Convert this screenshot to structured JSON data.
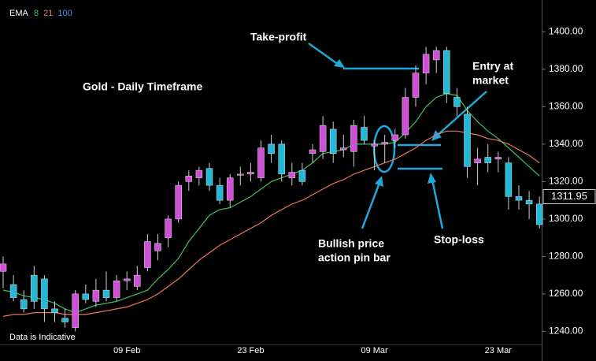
{
  "chart_data": {
    "type": "candlestick",
    "title": "Gold - Daily Timeframe",
    "footnote": "Data is Indicative",
    "legend_title": "EMA",
    "legend_extra": {
      "name": "100",
      "color": "#4f8ff0"
    },
    "up_color": "#d04fd8",
    "down_color": "#22b8d8",
    "categories": [
      null,
      null,
      null,
      null,
      null,
      null,
      null,
      null,
      null,
      null,
      null,
      null,
      "09 Feb",
      null,
      null,
      null,
      null,
      null,
      null,
      null,
      null,
      null,
      null,
      null,
      "23 Feb",
      null,
      null,
      null,
      null,
      null,
      null,
      null,
      null,
      null,
      null,
      null,
      "09 Mar",
      null,
      null,
      null,
      null,
      null,
      null,
      null,
      null,
      null,
      null,
      null,
      "23 Mar",
      null,
      null,
      null,
      null
    ],
    "open": [
      1272,
      1265,
      1257,
      1270,
      1268,
      1252,
      1247,
      1242,
      1260,
      1256,
      1262,
      1258,
      1267,
      1264,
      1274,
      1283,
      1290,
      1300,
      1320,
      1322,
      1327,
      1318,
      1310,
      1324,
      1324,
      1322,
      1340,
      1340,
      1322,
      1326,
      1335,
      1336,
      1348,
      1337,
      1336,
      1349,
      1339,
      1340,
      1342,
      1345,
      1365,
      1378,
      1385,
      1390,
      1365,
      1356,
      1330,
      1333,
      1332,
      1330,
      1312,
      1310,
      1308
    ],
    "high": [
      1280,
      1270,
      1262,
      1275,
      1270,
      1256,
      1252,
      1262,
      1265,
      1268,
      1272,
      1270,
      1272,
      1275,
      1292,
      1292,
      1302,
      1320,
      1326,
      1328,
      1330,
      1322,
      1324,
      1328,
      1330,
      1342,
      1345,
      1342,
      1330,
      1330,
      1340,
      1355,
      1352,
      1345,
      1353,
      1355,
      1342,
      1345,
      1348,
      1370,
      1382,
      1392,
      1392,
      1392,
      1370,
      1360,
      1338,
      1340,
      1336,
      1333,
      1318,
      1315,
      1312
    ],
    "low": [
      1263,
      1256,
      1250,
      1252,
      1245,
      1245,
      1242,
      1240,
      1255,
      1253,
      1256,
      1256,
      1262,
      1262,
      1272,
      1278,
      1285,
      1298,
      1315,
      1318,
      1315,
      1308,
      1306,
      1318,
      1320,
      1320,
      1330,
      1320,
      1318,
      1318,
      1330,
      1332,
      1330,
      1333,
      1328,
      1340,
      1326,
      1330,
      1338,
      1343,
      1360,
      1372,
      1378,
      1362,
      1355,
      1322,
      1318,
      1325,
      1325,
      1305,
      1305,
      1300,
      1295
    ],
    "close": [
      1276,
      1258,
      1252,
      1256,
      1252,
      1250,
      1245,
      1260,
      1257,
      1262,
      1258,
      1267,
      1268,
      1270,
      1288,
      1287,
      1300,
      1318,
      1323,
      1326,
      1318,
      1310,
      1322,
      1324,
      1325,
      1338,
      1335,
      1324,
      1325,
      1320,
      1337,
      1350,
      1335,
      1338,
      1350,
      1342,
      1340,
      1341,
      1345,
      1365,
      1378,
      1388,
      1390,
      1367,
      1360,
      1328,
      1332,
      1330,
      1333,
      1312,
      1310,
      1308,
      1297
    ],
    "series": [
      {
        "name": "8",
        "color": "#3fc060",
        "values": [
          1262,
          1261,
          1259,
          1258,
          1257,
          1255,
          1252,
          1250,
          1252,
          1254,
          1255,
          1256,
          1258,
          1260,
          1262,
          1268,
          1273,
          1279,
          1288,
          1295,
          1302,
          1305,
          1306,
          1309,
          1312,
          1316,
          1320,
          1322,
          1324,
          1326,
          1330,
          1335,
          1336,
          1337,
          1340,
          1340,
          1340,
          1340,
          1341,
          1346,
          1352,
          1360,
          1365,
          1367,
          1366,
          1358,
          1352,
          1347,
          1343,
          1338,
          1333,
          1328,
          1323
        ]
      },
      {
        "name": "21",
        "color": "#e8785a",
        "values": [
          1248,
          1249,
          1249,
          1250,
          1250,
          1250,
          1249,
          1249,
          1249,
          1250,
          1251,
          1252,
          1253,
          1255,
          1257,
          1260,
          1264,
          1268,
          1273,
          1278,
          1282,
          1286,
          1289,
          1292,
          1295,
          1298,
          1302,
          1305,
          1308,
          1310,
          1313,
          1316,
          1319,
          1321,
          1324,
          1326,
          1328,
          1330,
          1332,
          1335,
          1338,
          1342,
          1345,
          1347,
          1347,
          1346,
          1345,
          1343,
          1342,
          1340,
          1337,
          1334,
          1330
        ]
      }
    ],
    "last_price": 1311.95,
    "ylim": [
      1233,
      1417
    ],
    "yticks": [
      {
        "value": 1240,
        "label": "1240.00"
      },
      {
        "value": 1260,
        "label": "1260.00"
      },
      {
        "value": 1280,
        "label": "1280.00"
      },
      {
        "value": 1300,
        "label": "1300.00"
      },
      {
        "value": 1320,
        "label": "1320.00"
      },
      {
        "value": 1340,
        "label": "1340.00"
      },
      {
        "value": 1360,
        "label": "1360.00"
      },
      {
        "value": 1380,
        "label": "1380.00"
      },
      {
        "value": 1400,
        "label": "1400.00"
      }
    ],
    "annotations": {
      "take_profit": "Take-profit",
      "entry": [
        "Entry at",
        "market"
      ],
      "pin_bar": [
        "Bullish price",
        "action pin bar"
      ],
      "stop_loss": "Stop-loss"
    }
  }
}
